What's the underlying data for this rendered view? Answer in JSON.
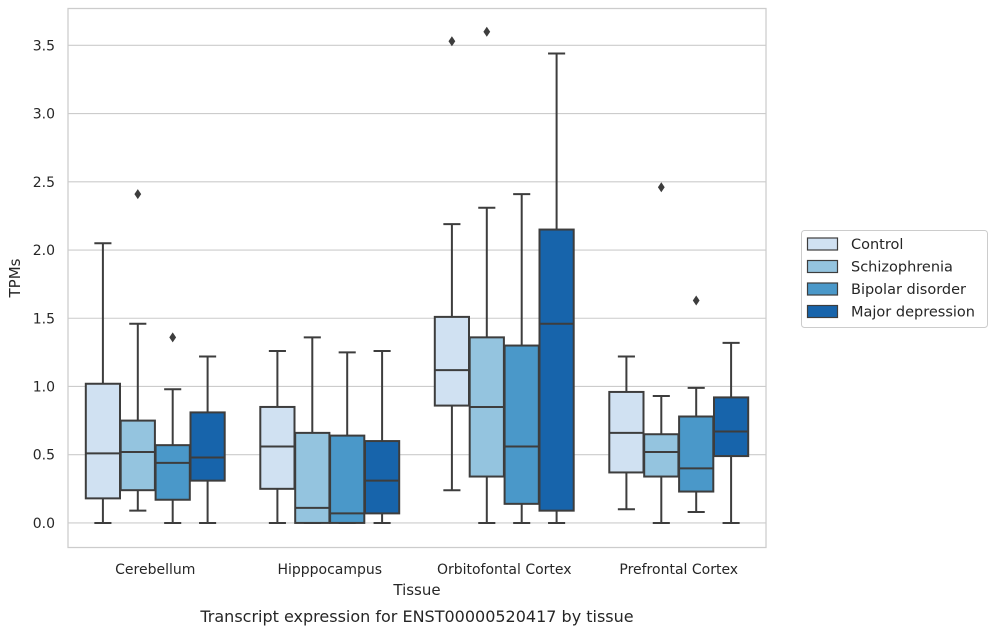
{
  "chart_data": {
    "type": "box",
    "caption": "Transcript expression for ENST00000520417 by tissue",
    "xlabel": "Tissue",
    "ylabel": "TPMs",
    "ylim": [
      -0.18,
      3.77
    ],
    "yticks": [
      0.0,
      0.5,
      1.0,
      1.5,
      2.0,
      2.5,
      3.0,
      3.5
    ],
    "ytick_labels": [
      "0.0",
      "0.5",
      "1.0",
      "1.5",
      "2.0",
      "2.5",
      "3.0",
      "3.5"
    ],
    "grid": "horizontal",
    "legend_position": "right",
    "categories": [
      "Cerebellum",
      "Hipppocampus",
      "Orbitofontal Cortex",
      "Prefrontal Cortex"
    ],
    "series": [
      {
        "name": "Control",
        "color": "#d0e1f2",
        "boxes": [
          {
            "whislo": 0.0,
            "q1": 0.18,
            "median": 0.51,
            "q3": 1.02,
            "whishi": 2.05,
            "fliers": []
          },
          {
            "whislo": 0.0,
            "q1": 0.25,
            "median": 0.56,
            "q3": 0.85,
            "whishi": 1.26,
            "fliers": []
          },
          {
            "whislo": 0.24,
            "q1": 0.86,
            "median": 1.12,
            "q3": 1.51,
            "whishi": 2.19,
            "fliers": [
              3.53
            ]
          },
          {
            "whislo": 0.1,
            "q1": 0.37,
            "median": 0.66,
            "q3": 0.96,
            "whishi": 1.22,
            "fliers": []
          }
        ]
      },
      {
        "name": "Schizophrenia",
        "color": "#94c4df",
        "boxes": [
          {
            "whislo": 0.09,
            "q1": 0.24,
            "median": 0.52,
            "q3": 0.75,
            "whishi": 1.46,
            "fliers": [
              2.41
            ]
          },
          {
            "whislo": 0.0,
            "q1": 0.0,
            "median": 0.11,
            "q3": 0.66,
            "whishi": 1.36,
            "fliers": []
          },
          {
            "whislo": 0.0,
            "q1": 0.34,
            "median": 0.85,
            "q3": 1.36,
            "whishi": 2.31,
            "fliers": [
              3.6
            ]
          },
          {
            "whislo": 0.0,
            "q1": 0.34,
            "median": 0.52,
            "q3": 0.65,
            "whishi": 0.93,
            "fliers": [
              2.46
            ]
          }
        ]
      },
      {
        "name": "Bipolar disorder",
        "color": "#4a98c9",
        "boxes": [
          {
            "whislo": 0.0,
            "q1": 0.17,
            "median": 0.44,
            "q3": 0.57,
            "whishi": 0.98,
            "fliers": [
              1.36
            ]
          },
          {
            "whislo": 0.0,
            "q1": 0.0,
            "median": 0.07,
            "q3": 0.64,
            "whishi": 1.25,
            "fliers": []
          },
          {
            "whislo": 0.0,
            "q1": 0.14,
            "median": 0.56,
            "q3": 1.3,
            "whishi": 2.41,
            "fliers": []
          },
          {
            "whislo": 0.08,
            "q1": 0.23,
            "median": 0.4,
            "q3": 0.78,
            "whishi": 0.99,
            "fliers": [
              1.63
            ]
          }
        ]
      },
      {
        "name": "Major depression",
        "color": "#1764ab",
        "boxes": [
          {
            "whislo": 0.0,
            "q1": 0.31,
            "median": 0.48,
            "q3": 0.81,
            "whishi": 1.22,
            "fliers": []
          },
          {
            "whislo": 0.0,
            "q1": 0.07,
            "median": 0.31,
            "q3": 0.6,
            "whishi": 1.26,
            "fliers": []
          },
          {
            "whislo": 0.0,
            "q1": 0.09,
            "median": 1.46,
            "q3": 2.15,
            "whishi": 3.44,
            "fliers": []
          },
          {
            "whislo": 0.0,
            "q1": 0.49,
            "median": 0.67,
            "q3": 0.92,
            "whishi": 1.32,
            "fliers": []
          }
        ]
      }
    ]
  }
}
